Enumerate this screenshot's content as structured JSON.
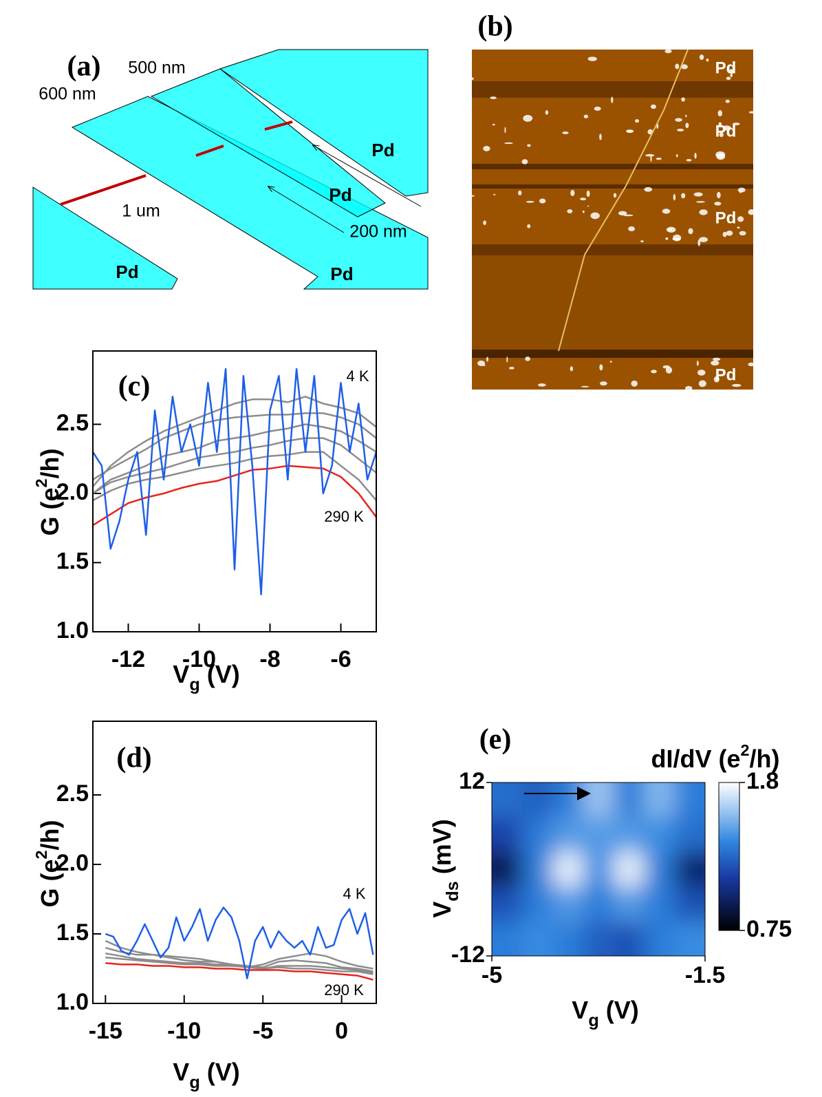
{
  "panel_a": {
    "label": "(a)",
    "texts": [
      "500 nm",
      "600 nm",
      "1 um",
      "200 nm"
    ],
    "contacts": [
      "Pd",
      "Pd",
      "Pd",
      "Pd"
    ]
  },
  "panel_b": {
    "label": "(b)",
    "contacts": [
      "Pd",
      "Pd",
      "Pd",
      "Pd"
    ]
  },
  "chart_data": [
    {
      "type": "line",
      "label": "(c)",
      "x_label": {
        "main": "V",
        "sub": "g",
        "unit": " (V)"
      },
      "y_label": {
        "main": "G (e",
        "sup": "2",
        "unit": "/h)"
      },
      "xlim": [
        -13,
        -5
      ],
      "ylim": [
        1,
        3.03
      ],
      "xticks": [
        -12,
        -10,
        -8,
        -6
      ],
      "yticks": [
        {
          "value": 1,
          "label": "1.0"
        },
        1.5,
        {
          "value": 2,
          "label": "2.0"
        },
        2.5
      ],
      "series": [
        {
          "color": "#8c8c8c",
          "x": [
            -13,
            -12.5,
            -12,
            -11.5,
            -11,
            -10.5,
            -10,
            -9.5,
            -9,
            -8.5,
            -8,
            -7.5,
            -7,
            -6.5,
            -6,
            -5.5,
            -5
          ],
          "values": [
            2.05,
            2.2,
            2.3,
            2.38,
            2.45,
            2.5,
            2.55,
            2.6,
            2.65,
            2.68,
            2.68,
            2.66,
            2.7,
            2.65,
            2.62,
            2.58,
            2.48
          ]
        },
        {
          "color": "#8c8c8c",
          "x": [
            -13,
            -12.5,
            -12,
            -11.5,
            -11,
            -10.5,
            -10,
            -9.5,
            -9,
            -8.5,
            -8,
            -7.5,
            -7,
            -6.5,
            -6,
            -5.5,
            -5
          ],
          "values": [
            2.1,
            2.18,
            2.25,
            2.32,
            2.4,
            2.45,
            2.5,
            2.53,
            2.55,
            2.56,
            2.57,
            2.57,
            2.58,
            2.58,
            2.55,
            2.5,
            2.4
          ]
        },
        {
          "color": "#8c8c8c",
          "x": [
            -13,
            -12.5,
            -12,
            -11.5,
            -11,
            -10.5,
            -10,
            -9.5,
            -9,
            -8.5,
            -8,
            -7.5,
            -7,
            -6.5,
            -6,
            -5.5,
            -5
          ],
          "values": [
            2.0,
            2.1,
            2.15,
            2.2,
            2.27,
            2.3,
            2.33,
            2.38,
            2.4,
            2.42,
            2.45,
            2.47,
            2.5,
            2.48,
            2.45,
            2.38,
            2.3
          ]
        },
        {
          "color": "#8c8c8c",
          "x": [
            -13,
            -12.5,
            -12,
            -11.5,
            -11,
            -10.5,
            -10,
            -9.5,
            -9,
            -8.5,
            -8,
            -7.5,
            -7,
            -6.5,
            -6,
            -5.5,
            -5
          ],
          "values": [
            2.0,
            2.08,
            2.12,
            2.15,
            2.18,
            2.22,
            2.26,
            2.28,
            2.3,
            2.33,
            2.35,
            2.38,
            2.4,
            2.4,
            2.35,
            2.25,
            2.15
          ]
        },
        {
          "color": "#8c8c8c",
          "x": [
            -13,
            -12.5,
            -12,
            -11.5,
            -11,
            -10.5,
            -10,
            -9.5,
            -9,
            -8.5,
            -8,
            -7.5,
            -7,
            -6.5,
            -6,
            -5.5,
            -5
          ],
          "values": [
            1.95,
            2.02,
            2.07,
            2.1,
            2.12,
            2.15,
            2.18,
            2.2,
            2.22,
            2.25,
            2.27,
            2.28,
            2.3,
            2.3,
            2.2,
            2.1,
            1.95
          ]
        },
        {
          "name": "290 K",
          "color": "#e8241c",
          "x": [
            -13,
            -12.5,
            -12,
            -11.5,
            -11,
            -10.5,
            -10,
            -9.5,
            -9,
            -8.5,
            -8,
            -7.5,
            -7,
            -6.5,
            -6,
            -5.5,
            -5
          ],
          "values": [
            1.77,
            1.85,
            1.93,
            1.97,
            2.0,
            2.04,
            2.07,
            2.09,
            2.13,
            2.17,
            2.18,
            2.2,
            2.19,
            2.18,
            2.12,
            2.0,
            1.83
          ]
        },
        {
          "name": "4 K",
          "color": "#1f5fe8",
          "x": [
            -13,
            -12.75,
            -12.5,
            -12.25,
            -12,
            -11.75,
            -11.5,
            -11.25,
            -11,
            -10.75,
            -10.5,
            -10.25,
            -10,
            -9.75,
            -9.5,
            -9.25,
            -9,
            -8.75,
            -8.5,
            -8.25,
            -8,
            -7.75,
            -7.5,
            -7.25,
            -7,
            -6.75,
            -6.5,
            -6.25,
            -6,
            -5.75,
            -5.5,
            -5.25,
            -5
          ],
          "values": [
            2.3,
            2.2,
            1.6,
            1.8,
            2.1,
            2.3,
            1.7,
            2.6,
            2.1,
            2.7,
            2.3,
            2.5,
            2.2,
            2.8,
            2.3,
            2.9,
            1.45,
            2.85,
            2.2,
            1.27,
            2.6,
            2.85,
            2.1,
            2.9,
            2.3,
            2.85,
            2.0,
            2.2,
            2.8,
            2.3,
            2.65,
            2.1,
            2.3
          ]
        }
      ]
    },
    {
      "type": "line",
      "label": "(d)",
      "x_label": {
        "main": "V",
        "sub": "g",
        "unit": " (V)"
      },
      "y_label": {
        "main": "G (e",
        "sup": "2",
        "unit": "/h)"
      },
      "xlim": [
        -15.8,
        2.2
      ],
      "ylim": [
        1,
        3.03
      ],
      "xticks": [
        -15,
        -10,
        -5,
        0
      ],
      "yticks": [
        {
          "value": 1,
          "label": "1.0"
        },
        1.5,
        {
          "value": 2,
          "label": "2.0"
        },
        2.5
      ],
      "series": [
        {
          "color": "#8c8c8c",
          "x": [
            -15,
            -14,
            -13,
            -12,
            -11,
            -10,
            -9,
            -8,
            -7,
            -6,
            -5,
            -4,
            -3,
            -2,
            -1,
            0,
            1,
            2
          ],
          "values": [
            1.45,
            1.4,
            1.37,
            1.35,
            1.34,
            1.33,
            1.32,
            1.3,
            1.28,
            1.26,
            1.28,
            1.32,
            1.34,
            1.36,
            1.34,
            1.3,
            1.27,
            1.25
          ]
        },
        {
          "color": "#8c8c8c",
          "x": [
            -15,
            -14,
            -13,
            -12,
            -11,
            -10,
            -9,
            -8,
            -7,
            -6,
            -5,
            -4,
            -3,
            -2,
            -1,
            0,
            1,
            2
          ],
          "values": [
            1.4,
            1.37,
            1.35,
            1.35,
            1.33,
            1.31,
            1.3,
            1.3,
            1.28,
            1.27,
            1.26,
            1.3,
            1.31,
            1.3,
            1.29,
            1.26,
            1.25,
            1.23
          ]
        },
        {
          "color": "#8c8c8c",
          "x": [
            -15,
            -14,
            -13,
            -12,
            -11,
            -10,
            -9,
            -8,
            -7,
            -6,
            -5,
            -4,
            -3,
            -2,
            -1,
            0,
            1,
            2
          ],
          "values": [
            1.36,
            1.34,
            1.32,
            1.31,
            1.3,
            1.29,
            1.29,
            1.28,
            1.28,
            1.26,
            1.25,
            1.27,
            1.27,
            1.27,
            1.26,
            1.25,
            1.24,
            1.22
          ]
        },
        {
          "color": "#8c8c8c",
          "x": [
            -15,
            -14,
            -13,
            -12,
            -11,
            -10,
            -9,
            -8,
            -7,
            -6,
            -5,
            -4,
            -3,
            -2,
            -1,
            0,
            1,
            2
          ],
          "values": [
            1.33,
            1.32,
            1.31,
            1.3,
            1.29,
            1.28,
            1.28,
            1.27,
            1.27,
            1.26,
            1.25,
            1.26,
            1.25,
            1.25,
            1.24,
            1.23,
            1.23,
            1.21
          ]
        },
        {
          "name": "290 K",
          "color": "#e8241c",
          "x": [
            -15,
            -14,
            -13,
            -12,
            -11,
            -10,
            -9,
            -8,
            -7,
            -6,
            -5,
            -4,
            -3,
            -2,
            -1,
            0,
            1,
            2
          ],
          "values": [
            1.29,
            1.28,
            1.28,
            1.27,
            1.27,
            1.26,
            1.26,
            1.25,
            1.25,
            1.24,
            1.24,
            1.24,
            1.23,
            1.23,
            1.22,
            1.21,
            1.2,
            1.17
          ]
        },
        {
          "name": "4 K",
          "color": "#1f5fe8",
          "x": [
            -15,
            -14.5,
            -14,
            -13.5,
            -13,
            -12.5,
            -12,
            -11.5,
            -11,
            -10.5,
            -10,
            -9.5,
            -9,
            -8.5,
            -8,
            -7.5,
            -7,
            -6.5,
            -6,
            -5.5,
            -5,
            -4.5,
            -4,
            -3.5,
            -3,
            -2.5,
            -2,
            -1.5,
            -1,
            -0.5,
            0,
            0.5,
            1,
            1.5,
            2
          ],
          "values": [
            1.5,
            1.48,
            1.38,
            1.35,
            1.45,
            1.57,
            1.45,
            1.33,
            1.4,
            1.62,
            1.45,
            1.55,
            1.68,
            1.45,
            1.6,
            1.69,
            1.62,
            1.45,
            1.18,
            1.45,
            1.55,
            1.4,
            1.52,
            1.45,
            1.4,
            1.45,
            1.35,
            1.55,
            1.4,
            1.42,
            1.6,
            1.68,
            1.5,
            1.65,
            1.35
          ]
        }
      ]
    },
    {
      "type": "heatmap",
      "label": "(e)",
      "title": {
        "main": "dI/dV (e",
        "sup": "2",
        "unit": "/h)"
      },
      "x_label": {
        "main": "V",
        "sub": "g",
        "unit": " (V)"
      },
      "y_label": {
        "main": "V",
        "sub": "ds",
        "unit": " (mV)"
      },
      "xlim": [
        -5,
        -1.5
      ],
      "ylim": [
        -12,
        12
      ],
      "xticks": [
        -5,
        -1.5
      ],
      "yticks": [
        -12,
        12
      ],
      "x": [
        -4.75,
        -4.25,
        -3.75,
        -3.25,
        -2.75,
        -2.25,
        -1.75
      ],
      "y": [
        9.6,
        4.8,
        0,
        -4.8,
        -9.6
      ],
      "z": [
        [
          1.3,
          1.25,
          1.35,
          1.6,
          1.35,
          1.55,
          1.35
        ],
        [
          1.15,
          1.35,
          1.45,
          1.45,
          1.45,
          1.4,
          1.3
        ],
        [
          0.95,
          1.35,
          1.75,
          1.4,
          1.75,
          1.35,
          1.0
        ],
        [
          1.2,
          1.35,
          1.45,
          1.35,
          1.45,
          1.35,
          1.2
        ],
        [
          1.35,
          1.4,
          1.35,
          1.25,
          1.2,
          1.35,
          1.4
        ]
      ],
      "clim": [
        0.75,
        1.8
      ],
      "cticks": [
        0.75,
        1.8
      ],
      "colormap": [
        "#000000",
        "#1838a0",
        "#2f86e0",
        "#ffffff"
      ]
    }
  ]
}
